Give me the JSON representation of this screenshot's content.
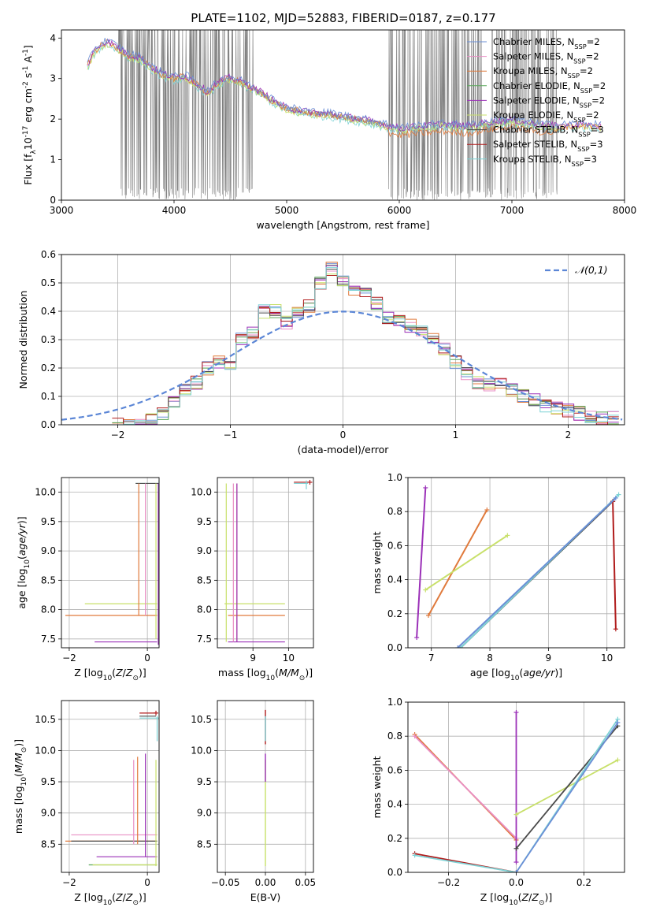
{
  "figure": {
    "title": "PLATE=1102, MJD=52883, FIBERID=0187, z=0.177"
  },
  "colors": {
    "ChabrierMILES": "#6b8fd6",
    "SalpeterMILES": "#e98fc4",
    "KroupaMILES": "#e07a3c",
    "ChabrierELODIE": "#5ba85b",
    "SalpeterELODIE": "#9b30b8",
    "KroupaELODIE": "#c8e06a",
    "ChabrierSTELIB": "#4a4a4a",
    "SalpeterSTELIB": "#b01c1c",
    "KroupaSTELIB": "#7fd3d6",
    "data": "#808080",
    "gauss": "#5b86d6"
  },
  "chart_data": [
    {
      "id": "spectrum",
      "type": "line",
      "title": "PLATE=1102, MJD=52883, FIBERID=0187, z=0.177",
      "xlabel": "wavelength [Angstrom, rest frame]",
      "ylabel": "Flux [f$_\\lambda$10$^{-17}$ erg cm$^{-2}$ s$^{-1}$ A$^{-1}$]",
      "xlim": [
        3000,
        8000
      ],
      "ylim": [
        0,
        4.2
      ],
      "xticks": [
        3000,
        4000,
        5000,
        6000,
        7000,
        8000
      ],
      "yticks": [
        0,
        1,
        2,
        3,
        4
      ],
      "grid": false,
      "legend_position": "top-right",
      "legend": [
        {
          "name": "Chabrier MILES, N$_{SSP}$=2",
          "color_key": "ChabrierMILES"
        },
        {
          "name": "Salpeter MILES, N$_{SSP}$=2",
          "color_key": "SalpeterMILES"
        },
        {
          "name": "Kroupa MILES, N$_{SSP}$=2",
          "color_key": "KroupaMILES"
        },
        {
          "name": "Chabrier ELODIE, N$_{SSP}$=2",
          "color_key": "ChabrierELODIE"
        },
        {
          "name": "Salpeter ELODIE, N$_{SSP}$=2",
          "color_key": "SalpeterELODIE"
        },
        {
          "name": "Kroupa ELODIE, N$_{SSP}$=2",
          "color_key": "KroupaELODIE"
        },
        {
          "name": "Chabrier STELIB, N$_{SSP}$=3",
          "color_key": "ChabrierSTELIB"
        },
        {
          "name": "Salpeter STELIB, N$_{SSP}$=3",
          "color_key": "SalpeterSTELIB"
        },
        {
          "name": "Kroupa STELIB, N$_{SSP}$=3",
          "color_key": "KroupaSTELIB"
        }
      ],
      "model_continuum": [
        [
          3230,
          3.3
        ],
        [
          3300,
          3.7
        ],
        [
          3400,
          3.9
        ],
        [
          3500,
          3.75
        ],
        [
          3600,
          3.55
        ],
        [
          3700,
          3.5
        ],
        [
          3800,
          3.25
        ],
        [
          3900,
          3.1
        ],
        [
          4000,
          3.0
        ],
        [
          4100,
          3.05
        ],
        [
          4200,
          2.85
        ],
        [
          4300,
          2.65
        ],
        [
          4400,
          2.9
        ],
        [
          4500,
          3.0
        ],
        [
          4600,
          2.9
        ],
        [
          4700,
          2.75
        ],
        [
          4800,
          2.6
        ],
        [
          4900,
          2.4
        ],
        [
          5000,
          2.25
        ],
        [
          5200,
          2.15
        ],
        [
          5400,
          2.1
        ],
        [
          5600,
          2.0
        ],
        [
          5800,
          1.9
        ],
        [
          6000,
          1.75
        ],
        [
          6200,
          1.8
        ],
        [
          6400,
          1.85
        ],
        [
          6600,
          1.8
        ],
        [
          6800,
          1.9
        ],
        [
          7000,
          1.95
        ],
        [
          7200,
          1.85
        ],
        [
          7400,
          1.8
        ],
        [
          7600,
          1.85
        ],
        [
          7800,
          1.8
        ]
      ],
      "data_envelope": {
        "noisy_ranges": [
          [
            3500,
            4700
          ],
          [
            5900,
            7400
          ]
        ],
        "x_range": [
          3500,
          7420
        ]
      }
    },
    {
      "id": "residuals",
      "type": "line",
      "xlabel": "(data-model)/error",
      "ylabel": "Normed distribution",
      "xlim": [
        -2.5,
        2.5
      ],
      "ylim": [
        0,
        0.6
      ],
      "xticks": [
        -2,
        -1,
        0,
        1,
        2
      ],
      "yticks": [
        0.0,
        0.1,
        0.2,
        0.3,
        0.4,
        0.5,
        0.6
      ],
      "grid": true,
      "legend_position": "top-right",
      "legend": [
        {
          "name": "$\\mathcal{N}(0,1)$",
          "color_key": "gauss"
        }
      ],
      "bin_width": 0.1,
      "bins_x": [
        -2.0,
        -1.9,
        -1.8,
        -1.7,
        -1.6,
        -1.5,
        -1.4,
        -1.3,
        -1.2,
        -1.1,
        -1.0,
        -0.9,
        -0.8,
        -0.7,
        -0.6,
        -0.5,
        -0.4,
        -0.3,
        -0.2,
        -0.1,
        0.0,
        0.1,
        0.2,
        0.3,
        0.4,
        0.5,
        0.6,
        0.7,
        0.8,
        0.9,
        1.0,
        1.1,
        1.2,
        1.3,
        1.4,
        1.5,
        1.6,
        1.7,
        1.8,
        1.9,
        2.0,
        2.1,
        2.2,
        2.3,
        2.4
      ],
      "hist_base": [
        0.0,
        0.0,
        0.005,
        0.015,
        0.04,
        0.08,
        0.12,
        0.15,
        0.2,
        0.22,
        0.2,
        0.3,
        0.33,
        0.4,
        0.4,
        0.36,
        0.4,
        0.42,
        0.5,
        0.55,
        0.5,
        0.48,
        0.46,
        0.43,
        0.38,
        0.36,
        0.35,
        0.33,
        0.31,
        0.27,
        0.22,
        0.18,
        0.15,
        0.14,
        0.14,
        0.12,
        0.1,
        0.09,
        0.07,
        0.06,
        0.05,
        0.04,
        0.03,
        0.02,
        0.025
      ]
    },
    {
      "id": "age-vs-Z",
      "type": "scatter",
      "xlabel": "Z [log$_{10}$($Z$/$Z_\\odot$)]",
      "ylabel": "age  [log$_{10}$($age/yr$)]",
      "xlim": [
        -2.2,
        0.3
      ],
      "ylim": [
        7.35,
        10.25
      ],
      "xticks": [
        -2,
        0
      ],
      "yticks": [
        7.5,
        8.0,
        8.5,
        9.0,
        9.5,
        10.0
      ],
      "grid": true
    },
    {
      "id": "age-vs-mass",
      "type": "scatter",
      "xlabel": "mass [log$_{10}$($M/M_\\odot$)]",
      "ylabel": "",
      "xlim": [
        8.0,
        10.7
      ],
      "ylim": [
        7.35,
        10.25
      ],
      "xticks": [
        9,
        10
      ],
      "yticks": [
        7.5,
        8.0,
        8.5,
        9.0,
        9.5,
        10.0
      ],
      "grid": true
    },
    {
      "id": "massweight-vs-age",
      "type": "line",
      "xlabel": "age  [log$_{10}$($age/yr$)]",
      "ylabel": "mass weight",
      "xlim": [
        6.6,
        10.3
      ],
      "ylim": [
        0,
        1.0
      ],
      "xticks": [
        7,
        8,
        9,
        10
      ],
      "yticks": [
        0.0,
        0.2,
        0.4,
        0.6,
        0.8,
        1.0
      ],
      "grid": true,
      "series": [
        {
          "color_key": "SalpeterELODIE",
          "points": [
            [
              6.75,
              0.06
            ],
            [
              6.9,
              0.94
            ]
          ]
        },
        {
          "color_key": "KroupaMILES",
          "points": [
            [
              6.95,
              0.19
            ],
            [
              7.95,
              0.81
            ]
          ]
        },
        {
          "color_key": "KroupaELODIE",
          "points": [
            [
              6.9,
              0.34
            ],
            [
              8.3,
              0.66
            ]
          ]
        },
        {
          "color_key": "ChabrierSTELIB",
          "points": [
            [
              7.5,
              0.0
            ],
            [
              10.1,
              0.86
            ]
          ]
        },
        {
          "color_key": "KroupaSTELIB",
          "points": [
            [
              7.5,
              0.0
            ],
            [
              10.2,
              0.9
            ]
          ]
        },
        {
          "color_key": "SalpeterSTELIB",
          "points": [
            [
              10.1,
              0.86
            ],
            [
              10.15,
              0.11
            ]
          ]
        },
        {
          "color_key": "ChabrierMILES",
          "points": [
            [
              7.45,
              0.0
            ],
            [
              10.15,
              0.88
            ]
          ]
        }
      ]
    },
    {
      "id": "mass-vs-Z",
      "type": "scatter",
      "xlabel": "Z [log$_{10}$($Z$/$Z_\\odot$)]",
      "ylabel": "mass [log$_{10}$($M/M_\\odot$)]",
      "xlim": [
        -2.2,
        0.3
      ],
      "ylim": [
        8.05,
        10.8
      ],
      "xticks": [
        -2,
        0
      ],
      "yticks": [
        8.5,
        9.0,
        9.5,
        10.0,
        10.5
      ],
      "grid": true
    },
    {
      "id": "mass-vs-EBV",
      "type": "scatter",
      "xlabel": "E(B-V)",
      "ylabel": "",
      "xlim": [
        -0.06,
        0.06
      ],
      "ylim": [
        8.05,
        10.8
      ],
      "xticks": [
        -0.05,
        0.0,
        0.05
      ],
      "yticks": [
        8.5,
        9.0,
        9.5,
        10.0,
        10.5
      ],
      "grid": true
    },
    {
      "id": "massweight-vs-Z",
      "type": "line",
      "xlabel": "Z [log$_{10}$($Z$/$Z_\\odot$)]",
      "ylabel": "mass weight",
      "xlim": [
        -0.32,
        0.32
      ],
      "ylim": [
        0,
        1.0
      ],
      "xticks": [
        -0.2,
        0.0,
        0.2
      ],
      "yticks": [
        0.0,
        0.2,
        0.4,
        0.6,
        0.8,
        1.0
      ],
      "grid": true,
      "series": [
        {
          "color_key": "KroupaMILES",
          "points": [
            [
              -0.3,
              0.81
            ],
            [
              0.0,
              0.19
            ]
          ]
        },
        {
          "color_key": "SalpeterMILES",
          "points": [
            [
              -0.3,
              0.8
            ],
            [
              0.0,
              0.2
            ]
          ]
        },
        {
          "color_key": "SalpeterELODIE",
          "points": [
            [
              0.0,
              0.06
            ],
            [
              0.0,
              0.94
            ]
          ]
        },
        {
          "color_key": "KroupaELODIE",
          "points": [
            [
              0.0,
              0.34
            ],
            [
              0.3,
              0.66
            ]
          ]
        },
        {
          "color_key": "ChabrierSTELIB",
          "points": [
            [
              0.0,
              0.14
            ],
            [
              0.3,
              0.86
            ]
          ]
        },
        {
          "color_key": "SalpeterSTELIB",
          "points": [
            [
              -0.3,
              0.11
            ],
            [
              0.0,
              0.0
            ]
          ]
        },
        {
          "color_key": "KroupaSTELIB",
          "points": [
            [
              -0.3,
              0.1
            ],
            [
              0.0,
              0.0
            ],
            [
              0.3,
              0.9
            ]
          ]
        },
        {
          "color_key": "ChabrierMILES",
          "points": [
            [
              0.0,
              0.0
            ],
            [
              0.3,
              0.88
            ]
          ]
        }
      ]
    }
  ]
}
